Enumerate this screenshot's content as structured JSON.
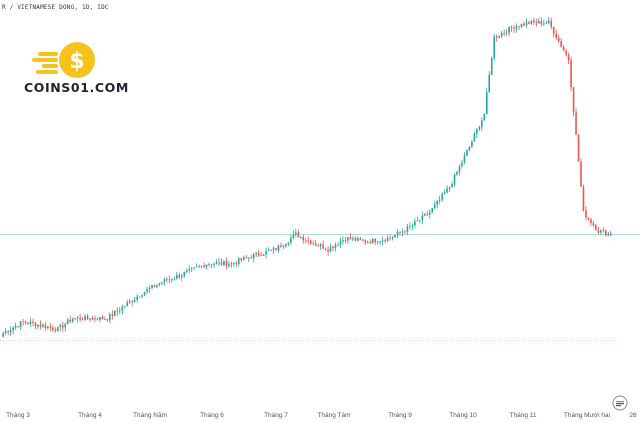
{
  "header": {
    "text": "R / VIETNAMESE DONG, 1D, IDC"
  },
  "brand": {
    "name": "COINS01.COM"
  },
  "colors": {
    "up": "#26a69a",
    "down": "#ef5350",
    "price_line": "#26a69a",
    "dotted_line": "#ef5350",
    "coin": "#f7c21b"
  },
  "chart_data": {
    "type": "candlestick",
    "x_ticks": [
      "Tháng 3",
      "Tháng 4",
      "Tháng Năm",
      "Tháng 6",
      "Tháng 7",
      "Tháng Tám",
      "Tháng 9",
      "Tháng 10",
      "Tháng 11",
      "Tháng Mười hai",
      "26"
    ],
    "ylim": [
      0,
      100
    ],
    "last_price": 44,
    "lower_reference": 15,
    "anchors": [
      [
        0,
        17
      ],
      [
        8,
        20
      ],
      [
        16,
        19
      ],
      [
        22,
        18
      ],
      [
        28,
        21
      ],
      [
        35,
        21
      ],
      [
        42,
        21
      ],
      [
        50,
        25
      ],
      [
        56,
        28
      ],
      [
        64,
        31
      ],
      [
        72,
        33
      ],
      [
        82,
        36
      ],
      [
        92,
        36
      ],
      [
        100,
        38
      ],
      [
        110,
        40
      ],
      [
        118,
        44
      ],
      [
        124,
        42
      ],
      [
        131,
        40
      ],
      [
        138,
        43
      ],
      [
        146,
        42
      ],
      [
        156,
        43
      ],
      [
        164,
        46
      ],
      [
        172,
        50
      ],
      [
        180,
        57
      ],
      [
        188,
        68
      ],
      [
        194,
        77
      ],
      [
        198,
        98
      ],
      [
        206,
        101
      ],
      [
        212,
        102
      ],
      [
        220,
        102
      ],
      [
        228,
        92
      ],
      [
        234,
        50
      ],
      [
        240,
        45
      ],
      [
        245,
        44
      ]
    ]
  }
}
